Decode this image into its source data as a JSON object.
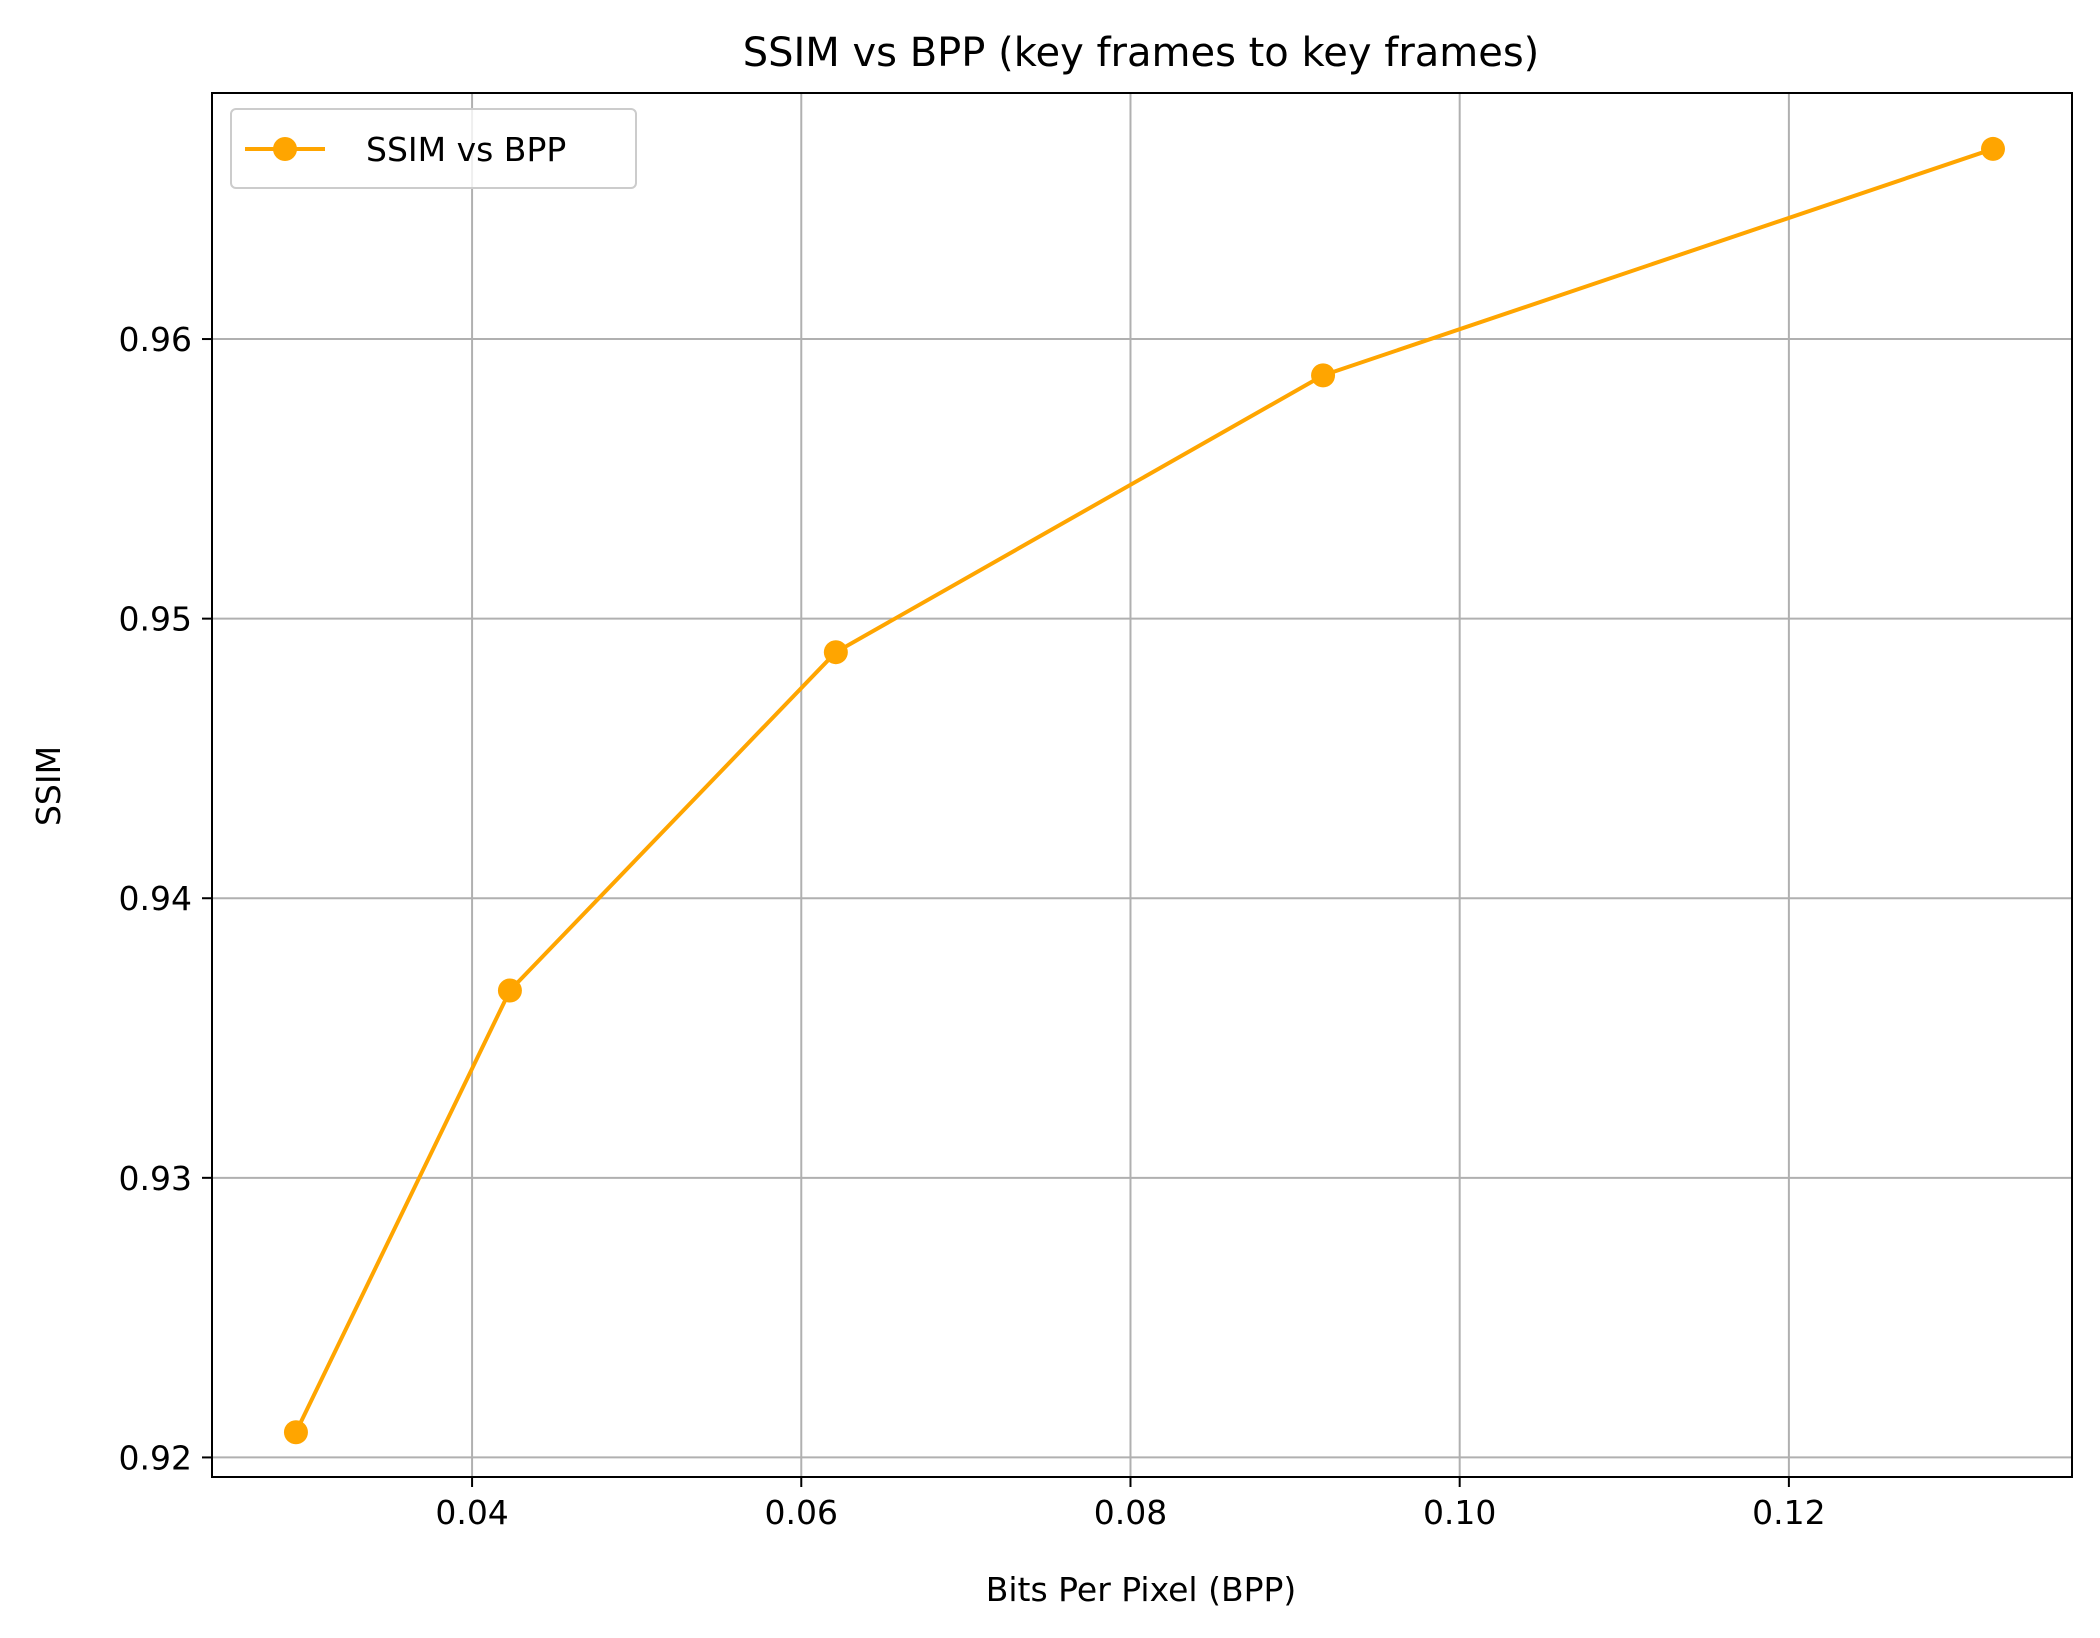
{
  "chart_data": {
    "type": "line",
    "title": "SSIM vs BPP (key frames to key frames)",
    "xlabel": "Bits Per Pixel (BPP)",
    "ylabel": "SSIM",
    "xlim": [
      0.0242,
      0.1372
    ],
    "ylim": [
      0.9193,
      0.9688
    ],
    "xticks": [
      0.04,
      0.06,
      0.08,
      0.1,
      0.12
    ],
    "xtick_labels": [
      "0.04",
      "0.06",
      "0.08",
      "0.10",
      "0.12"
    ],
    "yticks": [
      0.92,
      0.93,
      0.94,
      0.95,
      0.96
    ],
    "ytick_labels": [
      "0.92",
      "0.93",
      "0.94",
      "0.95",
      "0.96"
    ],
    "grid": true,
    "legend_position": "top-left",
    "series": [
      {
        "name": "SSIM vs BPP",
        "color": "#FFA500",
        "marker": "circle",
        "x": [
          0.0293,
          0.0423,
          0.0621,
          0.0917,
          0.1324
        ],
        "y": [
          0.9209,
          0.9367,
          0.9488,
          0.9587,
          0.9668
        ]
      }
    ]
  }
}
